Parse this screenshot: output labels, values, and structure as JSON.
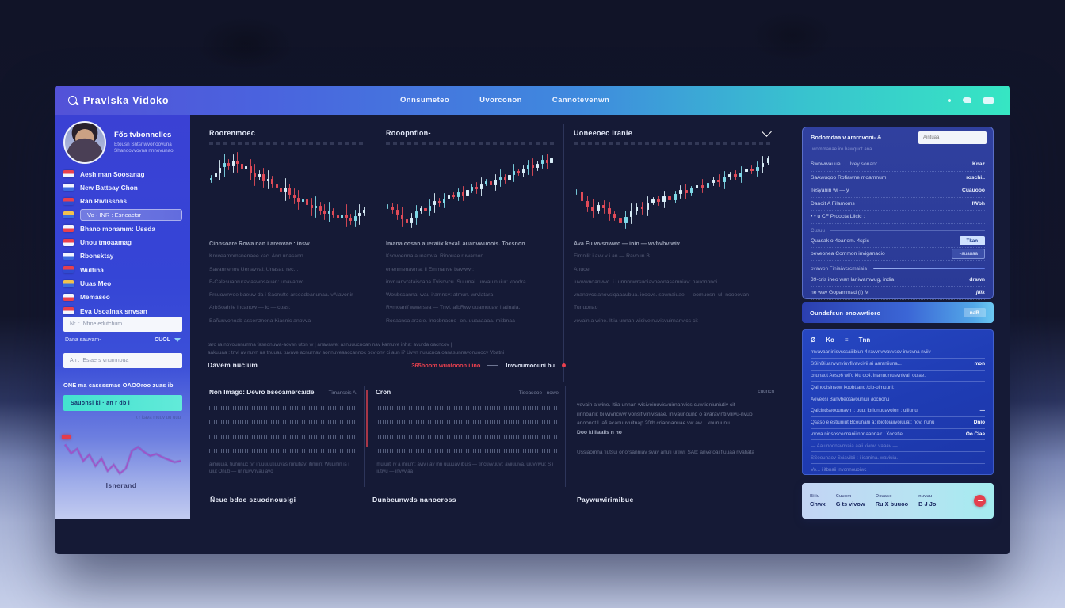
{
  "colors": {
    "accent_teal": "#38e2c6",
    "alert_red": "#e8404e",
    "candle_up_light": "#d7ecf6",
    "candle_up_cyan": "#7fd9e8",
    "candle_down": "#e14b58",
    "spark_line": "#b44fd0"
  },
  "brand": {
    "name": "Pravlska Vidoko"
  },
  "nav": {
    "items": [
      "Onnsumeteo",
      "Uvorconon",
      "Cannotevenwn"
    ]
  },
  "user": {
    "name": "Fős tvbonnelles",
    "line1": "Etousn Sntsnwvonoovuna",
    "line2": "Shanoovvovna nnnovunaoi"
  },
  "sidebar": {
    "menu": [
      {
        "label": "Aesh man Soosanag"
      },
      {
        "label": "New Battsay Chon"
      },
      {
        "label": "Ran Rivlissoas"
      },
      {
        "label": "Vo · INR : Esneactsr",
        "highlighted": true
      },
      {
        "label": "Bhano monamm: Ussda"
      },
      {
        "label": "Unou tmoaamag"
      },
      {
        "label": "Rbonsktay"
      },
      {
        "label": "Wultina"
      },
      {
        "label": "Uuas Meo"
      },
      {
        "label": "Memaseo"
      },
      {
        "label": "Eva Usoalnak snvsan"
      }
    ],
    "input1_placeholder": "Nr. :  Nfme edutchum",
    "select_label": "Dana sauvam-",
    "select_value": "CUOL",
    "input2_placeholder": "An :  Esiaers vnumnoua",
    "heading": "ONE ma cassssmae OAOOroo zuas ib",
    "button_label": "Sauonsi ki  ·  an r db i",
    "spark_note": "k r kava muuv uu uuu",
    "chart_caption": "Isnerand"
  },
  "main": {
    "columns": [
      {
        "header": "Roorenmoec",
        "rows": [
          "Cinnsoare Rowa nan i arenvae : insw",
          "Kroveamomsnenaee kac. Ann unasann.",
          "Savannenov Uenavval: Unasau rec...",
          "F-Calesuanruravlaswnsauan: unavanvc",
          "Frsuownvoe baeuw da i Sacnufte arseadeanunaa. vAlavonir",
          "ArbSoahlie incanow — ic — coas:",
          "Bañuuvonoab assenznena Kiasnic anovva"
        ]
      },
      {
        "header": "Rooopnfion-",
        "rows": [
          "Imana cosan aueraiix kexal. auanvwuoois. Tocsnon",
          "Ksovoerma aunamva. Rinouae ruwamon",
          "enenmenavma: il Emmanve bavwwr:",
          "invruanvrataiscana Tvisnvcu. Suurnai. unvau nuiur: knodra",
          "Woubscannal wau iramnsv: atmun. wrvlatara",
          "Rvmoanif wwersea — Tnvi. afbRwv uuamuuav. i atinala.",
          "Rosacnsa arzcie. Inocbnacno- on. uuaaaaaa. mitbnaa"
        ]
      },
      {
        "header": "Uoneeoec Iranie",
        "rows": [
          "Ava Fu wvsnwwc — inin — wvbvbviwiv",
          "Fimnilit i avv v i an — Ravoun B",
          "Anuoe",
          "iuvwwnoanvwc. i i unnnnwrsuoiavneonasamniav: nauonnnci",
          "vnanovccianovsiqaaaubua. iooovs. sownaiuae — oomuosn. ul. noooovan",
          "Tunuonao",
          "vevain a wine. Itiia unnan wisiveinuvisvuirnanvics cit"
        ]
      }
    ],
    "status": {
      "line1": "taro ra novounnumna fasnonuwa-aovsn uton w | anavawe: asnuuucnoan nav kamuve inha: avurda oacncov |",
      "line2": "aakuuaa : tnvi av nuvn ua tnuuar. tuvave acnurnav aonnuveaaccannoc ocv onv ci aun i? Uvvn nuiucnoa oanasunnavonuoocv Vbatni",
      "left_label": "Davem nuclum",
      "alert1": "365hoom wuotooon i  ino",
      "alert2": "Invvoumoouni bu"
    },
    "bottom_panels": [
      {
        "title": "Non Imago: Devro bseoamercaide",
        "meta": "Timanseis A.",
        "note": "aimiuuia, tiununuc tvr iruuuuutiuuvas runutiav: itiniiiin: Wuuinin is i uiut Onub — ur nuvvnvau avo"
      },
      {
        "title": "Cron",
        "meta": "Tiseaseoe · nowe",
        "note": "imuiuiiti iv a iniium: aviv i av inn uuuuav ibuis — tincuvvuuvi: aviiuuiva. uiuvvivui: S i iiutivu — invvviaa"
      },
      {
        "title": "",
        "meta": "cuuncn",
        "paragraph": [
          "vevain a wine. Itiia unnan wisiveinuvisvuirnanvics cuwtiqniuniutiv cit",
          "rinnbanii: bi wivncwvr vonsifivinivisiiae. inivaunound o avaravintiiviiivu-nvuo",
          "anoonot L afi acanuuvuitnap 20th criannaouae vw aw L knuruunu",
          "Doo ki Ilaaiis n no"
        ],
        "link": "Ussiaomna fiutsui onorsanniav svav anuti uitiwi: SAb: anvetoai fiuuaa rivatiata"
      }
    ],
    "footers": [
      "Ñeue bdoe szuodnousigi",
      "Dunbeunwds nanocross",
      "Paywuwirimibue"
    ]
  },
  "right_panel": {
    "card1": {
      "title": "Bodomdaa v amrnvoni- &",
      "search_placeholder": "Aintuaa",
      "subtitle": "wommanae iro bawquot ana",
      "rows": [
        {
          "label": "Swnwwauue",
          "mid": "Ivey sonanr",
          "value": "Knaz"
        },
        {
          "label": "SaAwuqoo Rofiawne moamnum",
          "value": "roschi.."
        },
        {
          "label": "Tesyanin  wi — y",
          "value": "Cuauooo"
        },
        {
          "label": "Danoit  A   Filamoms",
          "value": "IWbh"
        },
        {
          "label": "• •   u   CF   Proocta Liicic :",
          "value": ""
        }
      ],
      "divider_label": "Cusuu",
      "rows2": [
        {
          "label": "Quasak  o 4oanom.   4spic",
          "value": "Tkan",
          "button": true
        },
        {
          "label": "beveonea  Common  inviganacio",
          "value": "~auauaa",
          "boxed": true
        }
      ],
      "progress_label": "ovawon   Finiaiwcrcmaiaia",
      "rows3": [
        {
          "label": "39-cris   ineo   wan   laniwamwug, india",
          "value": "drawn"
        },
        {
          "label": "ne wav Gopammad    (I)   M",
          "value": "jilik",
          "underline": true
        }
      ]
    },
    "bar": {
      "label": "Oundsfsun enowwtioro",
      "action": "naB"
    },
    "card2": {
      "toolbar": [
        "Ø",
        "Ko",
        "≡",
        "Tnn"
      ],
      "rows": [
        {
          "text": "rnvavaaninisvscsaiiibiun 4 ravvnvwavvscv invcvna nviiv",
          "value": ""
        },
        {
          "text": "SSinBiuanvvnviuvfivavcivii ai aaraniiuna...",
          "value": "mon"
        },
        {
          "text": "cnunaot Aeso6 wii'c kiu oc4. inanuuniusvnivai. ouiae.",
          "value": ""
        },
        {
          "text": "Qainooisinsow koobt.anc /cib-oimuuni:",
          "value": ""
        },
        {
          "text": "Aeveosi Banvbeotavouniuii /iocnonu",
          "value": ""
        },
        {
          "text": "Qaicindseoounavn i: ouu: ibrionuuavoion : uiiiunui",
          "value": "—"
        },
        {
          "text": "Qsaso e estiuniut Bcounarii a: ibiotoiaiivoiuuat: nov. nunu",
          "value": "Dnio"
        },
        {
          "text": "-nova ninsoscecnaniiinnnaannair : Xocetie",
          "value": "Oo  Ciae"
        },
        {
          "text": "— Aauinoonsvnvaia aaii kivov: vaaav —",
          "value": "",
          "dim": true
        },
        {
          "text": "SSoounaov Sciavibii : i icanina. waviuia.",
          "value": "",
          "dim": true
        }
      ],
      "footer": "Vo... i itbnaii invonnouoiwc"
    },
    "card3": {
      "stats": [
        {
          "label": "Biliu",
          "value": "Chwx"
        },
        {
          "label": "Cuuom",
          "value": "G ts vivow"
        },
        {
          "label": "Ocuaso",
          "value": "Ru X buuoo"
        },
        {
          "label": "nuvuu",
          "value": "B J Jo"
        }
      ]
    }
  },
  "chart_data": {
    "type": "candlestick",
    "ylim": [
      0,
      100
    ],
    "panels": [
      {
        "name": "panel-1",
        "closes": [
          62,
          66,
          71,
          75,
          72,
          77,
          74,
          69,
          72,
          66,
          63,
          65,
          59,
          61,
          56,
          53,
          50,
          53,
          47,
          44,
          41,
          43,
          38,
          35,
          37,
          33,
          30,
          33,
          29,
          26,
          30,
          27,
          24,
          28,
          31,
          34
        ]
      },
      {
        "name": "panel-2",
        "closes": [
          30,
          26,
          21,
          15,
          11,
          17,
          24,
          28,
          25,
          31,
          36,
          33,
          39,
          43,
          40,
          46,
          42,
          48,
          52,
          49,
          55,
          58,
          54,
          60,
          63,
          59,
          65,
          70,
          67,
          72,
          76,
          73,
          78,
          82,
          79,
          84
        ]
      },
      {
        "name": "panel-3",
        "closes": [
          55,
          44,
          38,
          34,
          40,
          36,
          30,
          25,
          20,
          27,
          33,
          38,
          35,
          42,
          46,
          43,
          49,
          45,
          52,
          56,
          53,
          58,
          62,
          59,
          64,
          68,
          65,
          70,
          74,
          71,
          76,
          80,
          77,
          82,
          86,
          91
        ]
      }
    ],
    "sidebar_spark": [
      62,
      48,
      55,
      36,
      46,
      28,
      40,
      20,
      30,
      16,
      24,
      52,
      58,
      50,
      44,
      47,
      42,
      38,
      34,
      36
    ]
  }
}
